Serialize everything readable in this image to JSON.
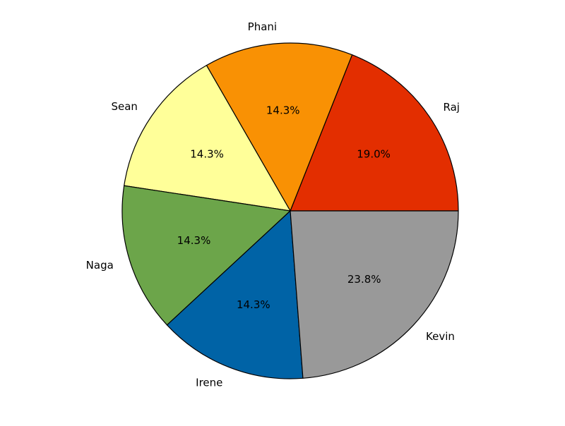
{
  "chart_data": {
    "type": "pie",
    "title": "",
    "start_angle_deg": 0,
    "direction": "counterclockwise",
    "slices": [
      {
        "label": "Raj",
        "value": 19.0,
        "pct_label": "19.0%",
        "color": "#e32e00"
      },
      {
        "label": "Phani",
        "value": 14.3,
        "pct_label": "14.3%",
        "color": "#f99104"
      },
      {
        "label": "Sean",
        "value": 14.3,
        "pct_label": "14.3%",
        "color": "#ffff99"
      },
      {
        "label": "Naga",
        "value": 14.3,
        "pct_label": "14.3%",
        "color": "#6ca54a"
      },
      {
        "label": "Irene",
        "value": 14.3,
        "pct_label": "14.3%",
        "color": "#0063a6"
      },
      {
        "label": "Kevin",
        "value": 23.8,
        "pct_label": "23.8%",
        "color": "#999999"
      }
    ],
    "edge_color": "#000000"
  }
}
